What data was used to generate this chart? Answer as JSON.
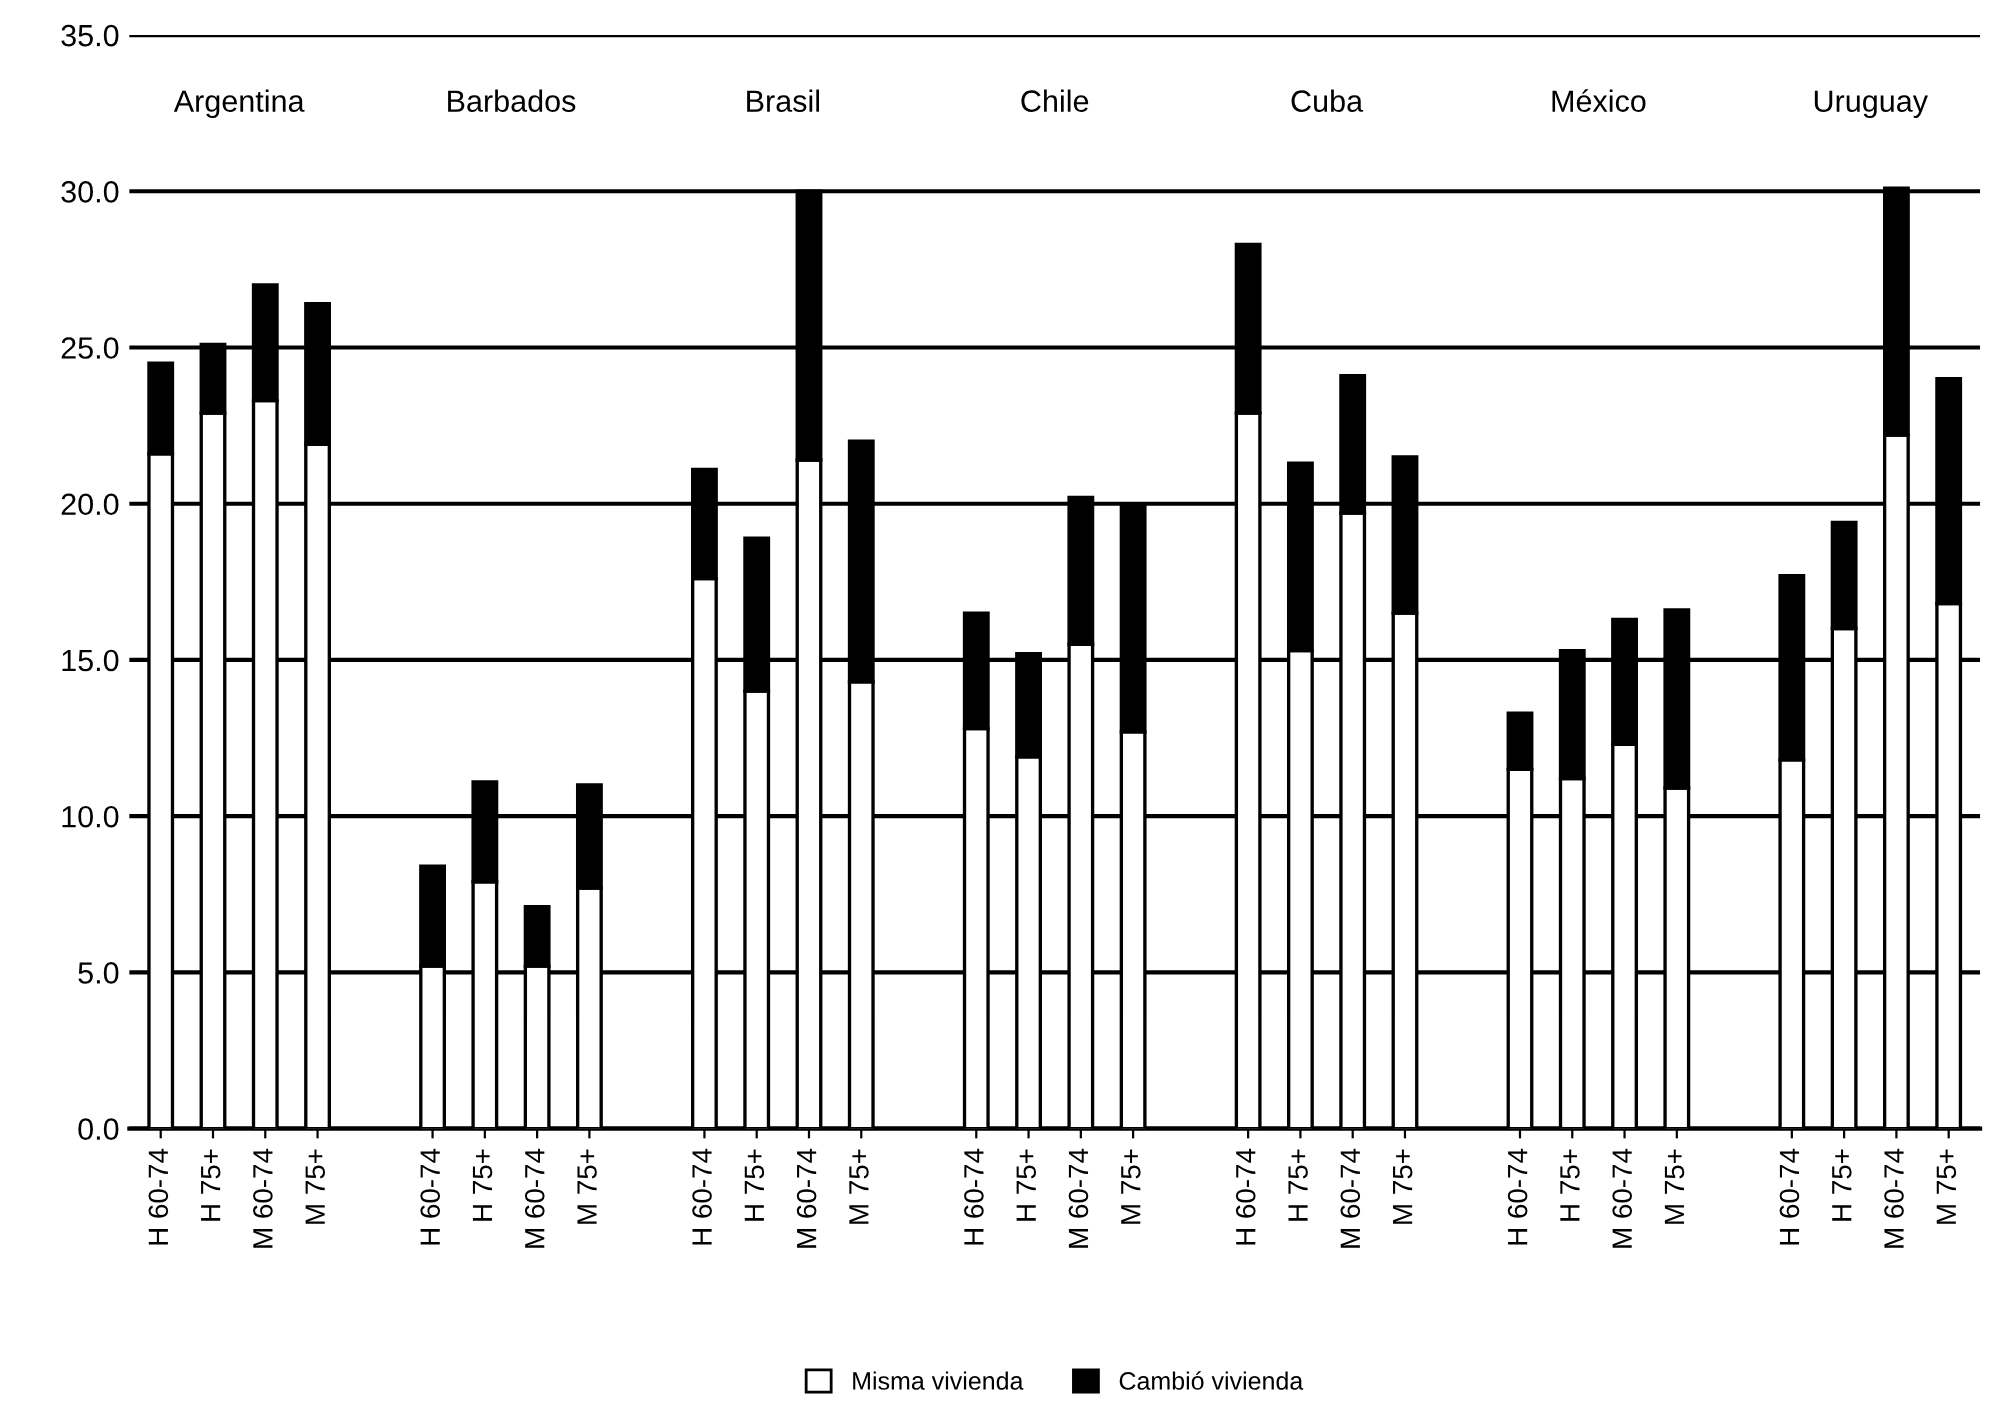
{
  "chart_data": {
    "type": "bar",
    "stacked": true,
    "categories": [
      "H 60-74",
      "H 75+",
      "M 60-74",
      "M 75+",
      "H 60-74",
      "H 75+",
      "M 60-74",
      "M 75+",
      "H 60-74",
      "H 75+",
      "M 60-74",
      "M 75+",
      "H 60-74",
      "H 75+",
      "M 60-74",
      "M 75+",
      "H 60-74",
      "H 75+",
      "M 60-74",
      "M 75+",
      "H 60-74",
      "H 75+",
      "M 60-74",
      "M 75+",
      "H 60-74",
      "H 75+",
      "M 60-74",
      "M 75+"
    ],
    "annotations": [
      "Argentina",
      "Barbados",
      "Brasil",
      "Chile",
      "Cuba",
      "México",
      "Uruguay"
    ],
    "series": [
      {
        "name": "Misma vivienda",
        "color": "#ffffff",
        "values": [
          21.6,
          22.9,
          23.3,
          21.9,
          5.2,
          7.9,
          5.2,
          7.7,
          17.6,
          14.0,
          21.4,
          14.3,
          12.8,
          11.9,
          15.5,
          12.7,
          22.9,
          15.3,
          19.7,
          16.5,
          11.5,
          11.2,
          12.3,
          10.9,
          11.8,
          16.0,
          22.2,
          16.8
        ]
      },
      {
        "name": "Cambió vivienda",
        "color": "#000000",
        "values": [
          2.9,
          2.2,
          3.7,
          4.5,
          3.2,
          3.2,
          1.9,
          3.3,
          3.5,
          4.9,
          8.6,
          7.7,
          3.7,
          3.3,
          4.7,
          7.3,
          5.4,
          6.0,
          4.4,
          5.0,
          1.8,
          4.1,
          4.0,
          5.7,
          5.9,
          3.4,
          7.9,
          7.2
        ]
      }
    ],
    "ylim": [
      0,
      35
    ],
    "yticks": [
      {
        "value": 0,
        "label": "0.0"
      },
      {
        "value": 5,
        "label": "5.0"
      },
      {
        "value": 10,
        "label": "10.0"
      },
      {
        "value": 15,
        "label": "15.0"
      },
      {
        "value": 20,
        "label": "20.0"
      },
      {
        "value": 25,
        "label": "25.0"
      },
      {
        "value": 30,
        "label": "30.0"
      },
      {
        "value": 35,
        "label": "35.0"
      }
    ],
    "grid": "y",
    "legend": "bottom"
  }
}
